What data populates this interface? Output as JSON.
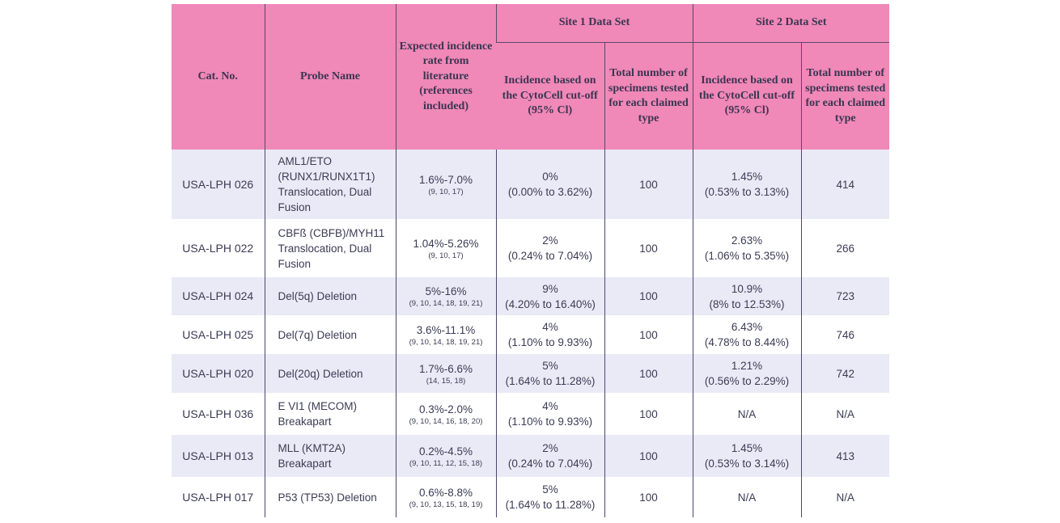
{
  "header": {
    "cat_no": "Cat. No.",
    "probe_name": "Probe Name",
    "expected": "Expected incidence rate from literature (references included)",
    "site1": "Site 1 Data Set",
    "site2": "Site 2 Data Set",
    "incidence": "Incidence based on the CytoCell cut-off (95% Cl)",
    "total": "Total number of specimens tested for each claimed type"
  },
  "rows": [
    {
      "cat": "USA-LPH 026",
      "probe": "AML1/ETO (RUNX1/RUNX1T1) Translocation, Dual Fusion",
      "rate": "1.6%-7.0%",
      "refs": "(9, 10, 17)",
      "s1_pct": "0%",
      "s1_ci": "(0.00% to 3.62%)",
      "s1_total": "100",
      "s2_pct": "1.45%",
      "s2_ci": "(0.53% to 3.13%)",
      "s2_total": "414"
    },
    {
      "cat": "USA-LPH 022",
      "probe": "CBFß (CBFB)/MYH11 Translocation, Dual Fusion",
      "rate": "1.04%-5.26%",
      "refs": "(9, 10, 17)",
      "s1_pct": "2%",
      "s1_ci": "(0.24% to 7.04%)",
      "s1_total": "100",
      "s2_pct": "2.63%",
      "s2_ci": "(1.06% to 5.35%)",
      "s2_total": "266"
    },
    {
      "cat": "USA-LPH 024",
      "probe": "Del(5q) Deletion",
      "rate": "5%-16%",
      "refs": "(9, 10, 14, 18, 19, 21)",
      "s1_pct": "9%",
      "s1_ci": "(4.20% to 16.40%)",
      "s1_total": "100",
      "s2_pct": "10.9%",
      "s2_ci": "(8% to 12.53%)",
      "s2_total": "723"
    },
    {
      "cat": "USA-LPH 025",
      "probe": "Del(7q) Deletion",
      "rate": "3.6%-11.1%",
      "refs": "(9, 10, 14, 18, 19, 21)",
      "s1_pct": "4%",
      "s1_ci": "(1.10% to 9.93%)",
      "s1_total": "100",
      "s2_pct": "6.43%",
      "s2_ci": "(4.78% to 8.44%)",
      "s2_total": "746"
    },
    {
      "cat": "USA-LPH 020",
      "probe": "Del(20q) Deletion",
      "rate": "1.7%-6.6%",
      "refs": "(14, 15, 18)",
      "s1_pct": "5%",
      "s1_ci": "(1.64% to 11.28%)",
      "s1_total": "100",
      "s2_pct": "1.21%",
      "s2_ci": "(0.56% to 2.29%)",
      "s2_total": "742"
    },
    {
      "cat": "USA-LPH 036",
      "probe": "E VI1 (MECOM) Breakapart",
      "rate": "0.3%-2.0%",
      "refs": "(9, 10, 14, 16, 18, 20)",
      "s1_pct": "4%",
      "s1_ci": "(1.10% to 9.93%)",
      "s1_total": "100",
      "s2_pct": "N/A",
      "s2_ci": "",
      "s2_total": "N/A"
    },
    {
      "cat": "USA-LPH 013",
      "probe": "MLL (KMT2A) Breakapart",
      "rate": "0.2%-4.5%",
      "refs": "(9, 10, 11, 12, 15, 18)",
      "s1_pct": "2%",
      "s1_ci": "(0.24% to 7.04%)",
      "s1_total": "100",
      "s2_pct": "1.45%",
      "s2_ci": "(0.53% to 3.14%)",
      "s2_total": "413"
    },
    {
      "cat": "USA-LPH 017",
      "probe": "P53 (TP53) Deletion",
      "rate": "0.6%-8.8%",
      "refs": "(9, 10, 13, 15, 18, 19)",
      "s1_pct": "5%",
      "s1_ci": "(1.64% to 11.28%)",
      "s1_total": "100",
      "s2_pct": "N/A",
      "s2_ci": "",
      "s2_total": "N/A"
    }
  ]
}
